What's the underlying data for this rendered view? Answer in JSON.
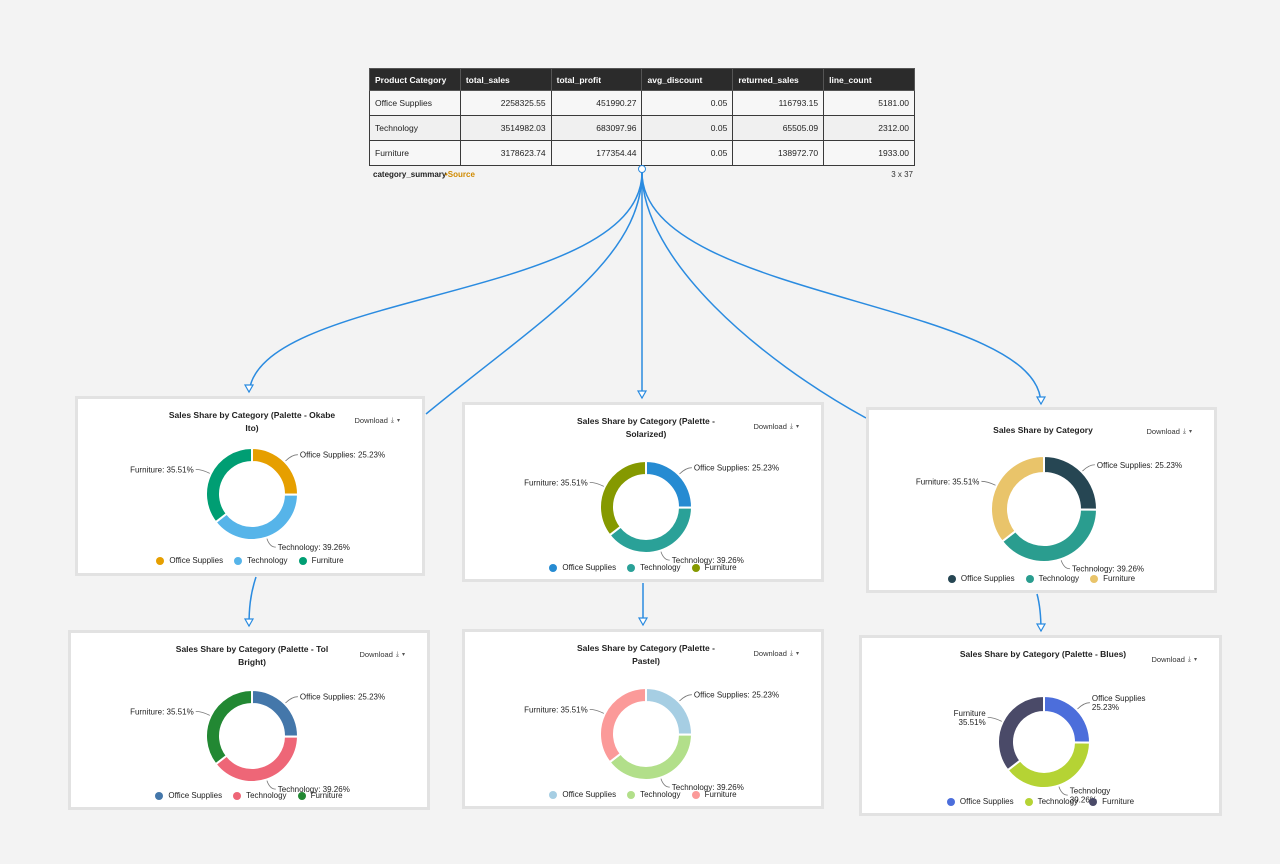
{
  "table": {
    "columns": [
      "Product Category",
      "total_sales",
      "total_profit",
      "avg_discount",
      "returned_sales",
      "line_count"
    ],
    "rows": [
      [
        "Office Supplies",
        "2258325.55",
        "451990.27",
        "0.05",
        "116793.15",
        "5181.00"
      ],
      [
        "Technology",
        "3514982.03",
        "683097.96",
        "0.05",
        "65505.09",
        "2312.00"
      ],
      [
        "Furniture",
        "3178623.74",
        "177354.44",
        "0.05",
        "138972.70",
        "1933.00"
      ]
    ],
    "name": "category_summary",
    "source_label": "•Source",
    "dims": "3 x 37"
  },
  "download_label": "Download",
  "icons": {
    "download": "download-icon",
    "menu": "chevron-down-icon"
  },
  "edge_color": "#2a8be0",
  "chart_data": [
    {
      "type": "pie",
      "title": "Sales Share by Category (Palette - Okabe Ito)",
      "categories": [
        "Office Supplies",
        "Technology",
        "Furniture"
      ],
      "values": [
        25.23,
        39.26,
        35.51
      ],
      "labels": [
        "Office Supplies: 25.23%",
        "Technology: 39.26%",
        "Furniture: 35.51%"
      ],
      "colors": [
        "#E69F00",
        "#56B4E9",
        "#009E73"
      ],
      "legend": "bottom"
    },
    {
      "type": "pie",
      "title": "Sales Share by Category (Palette - Solarized)",
      "categories": [
        "Office Supplies",
        "Technology",
        "Furniture"
      ],
      "values": [
        25.23,
        39.26,
        35.51
      ],
      "labels": [
        "Office Supplies: 25.23%",
        "Technology: 39.26%",
        "Furniture: 35.51%"
      ],
      "colors": [
        "#268BD2",
        "#2AA198",
        "#859900"
      ],
      "legend": "bottom"
    },
    {
      "type": "pie",
      "title": "Sales Share by Category",
      "categories": [
        "Office Supplies",
        "Technology",
        "Furniture"
      ],
      "values": [
        25.23,
        39.26,
        35.51
      ],
      "labels": [
        "Office Supplies: 25.23%",
        "Technology: 39.26%",
        "Furniture: 35.51%"
      ],
      "colors": [
        "#264653",
        "#2A9D8F",
        "#E9C46A"
      ],
      "legend": "bottom"
    },
    {
      "type": "pie",
      "title": "Sales Share by Category (Palette - Tol Bright)",
      "categories": [
        "Office Supplies",
        "Technology",
        "Furniture"
      ],
      "values": [
        25.23,
        39.26,
        35.51
      ],
      "labels": [
        "Office Supplies: 25.23%",
        "Technology: 39.26%",
        "Furniture: 35.51%"
      ],
      "colors": [
        "#4477AA",
        "#EE6677",
        "#228833"
      ],
      "legend": "bottom"
    },
    {
      "type": "pie",
      "title": "Sales Share by Category (Palette - Pastel)",
      "categories": [
        "Office Supplies",
        "Technology",
        "Furniture"
      ],
      "values": [
        25.23,
        39.26,
        35.51
      ],
      "labels": [
        "Office Supplies: 25.23%",
        "Technology: 39.26%",
        "Furniture: 35.51%"
      ],
      "colors": [
        "#A6CEE3",
        "#B2DF8A",
        "#FB9A99"
      ],
      "legend": "bottom"
    },
    {
      "type": "pie",
      "title": "Sales Share by Category (Palette - Blues)",
      "categories": [
        "Office Supplies",
        "Technology",
        "Furniture"
      ],
      "values": [
        25.23,
        39.26,
        35.51
      ],
      "labels": [
        "Office Supplies\n25.23%",
        "Technology\n39.26%",
        "Furniture\n35.51%"
      ],
      "colors": [
        "#4C6EDB",
        "#B5D334",
        "#4A4A68"
      ],
      "legend": "bottom"
    }
  ]
}
